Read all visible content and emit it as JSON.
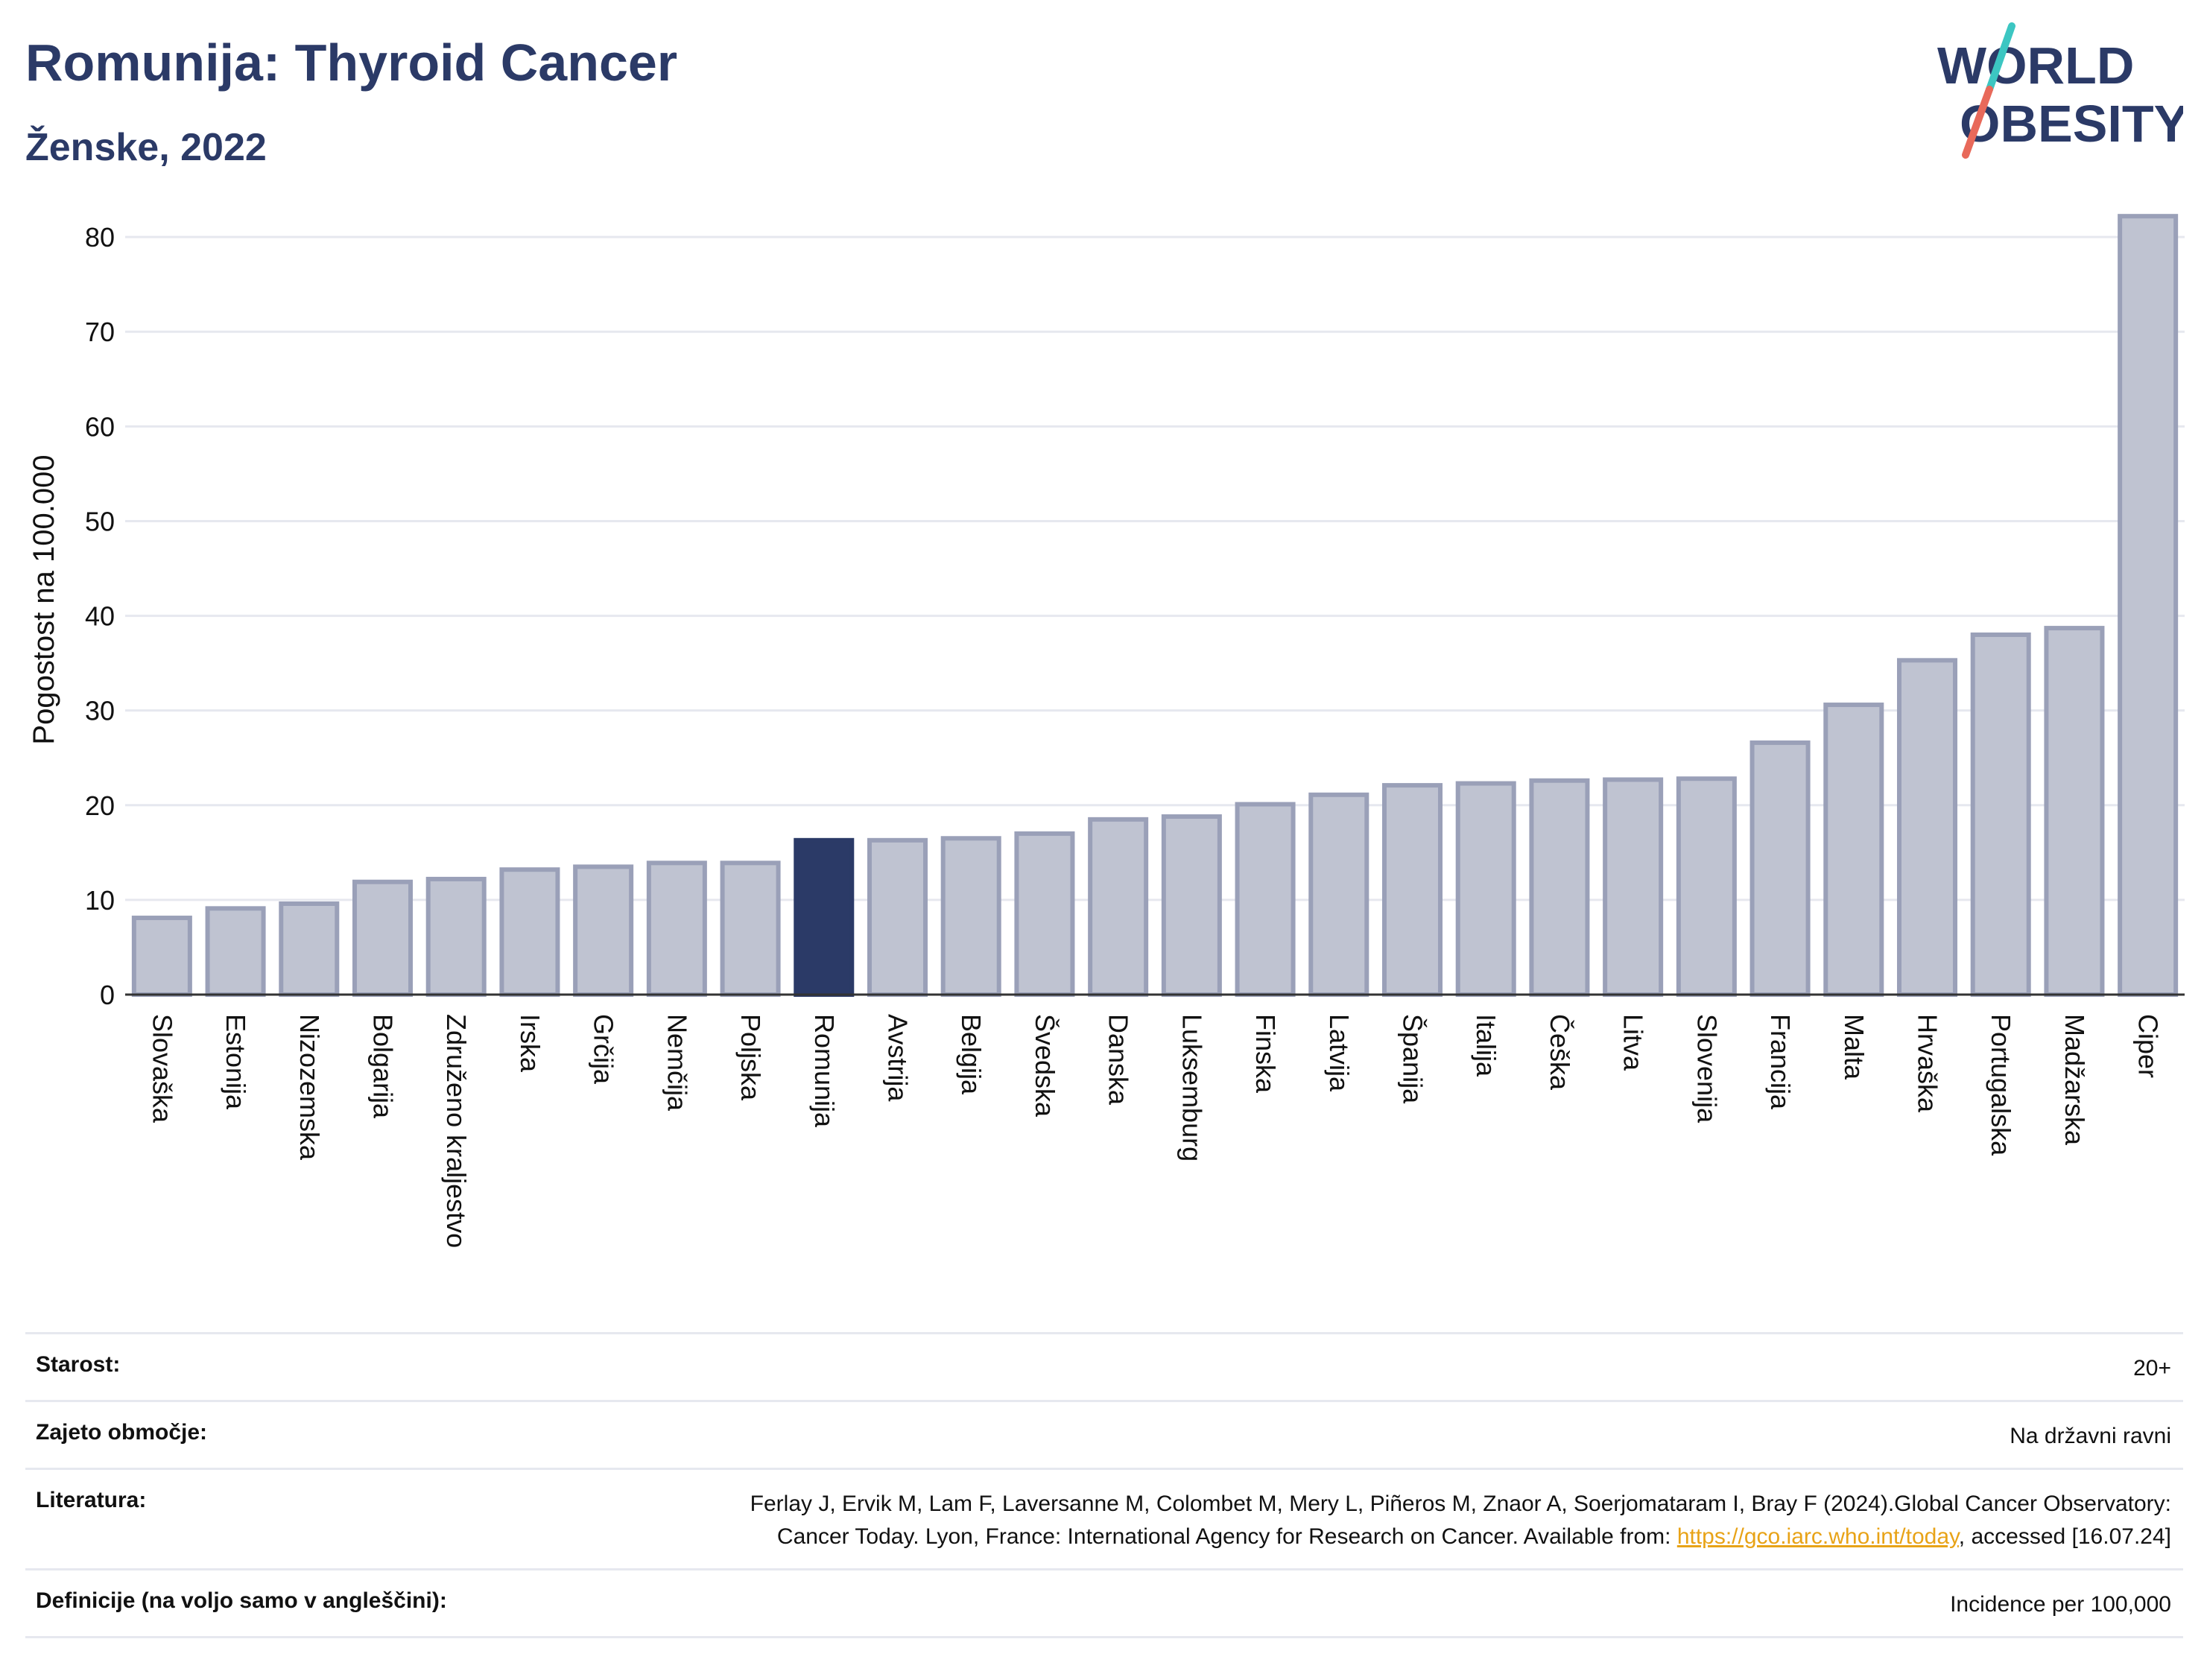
{
  "header": {
    "title": "Romunija: Thyroid Cancer",
    "subtitle": "Ženske, 2022"
  },
  "logo": {
    "line1": "WORLD",
    "line2": "OBESITY",
    "colors": {
      "text": "#2b3a67",
      "slash_top": "#3cc6c2",
      "slash_bottom": "#e8695a"
    }
  },
  "chart_data": {
    "type": "bar",
    "ylabel": "Pogostost na 100.000",
    "ylim": [
      0,
      83
    ],
    "yticks": [
      0,
      10,
      20,
      30,
      40,
      50,
      60,
      70,
      80
    ],
    "grid": true,
    "highlight": "Romunija",
    "colors": {
      "bar": "#bfc3d1",
      "bar_edge": "#9aa0b8",
      "highlight": "#2b3a67",
      "grid": "#e6e8ef"
    },
    "categories": [
      "Slovaška",
      "Estonija",
      "Nizozemska",
      "Bolgarija",
      "Združeno kraljestvo",
      "Irska",
      "Grčija",
      "Nemčija",
      "Poljska",
      "Romunija",
      "Avstrija",
      "Belgija",
      "Švedska",
      "Danska",
      "Luksemburg",
      "Finska",
      "Latvija",
      "Španija",
      "Italija",
      "Češka",
      "Litva",
      "Slovenija",
      "Francija",
      "Malta",
      "Hrvaška",
      "Portugalska",
      "Madžarska",
      "Ciper"
    ],
    "values": [
      8.1,
      9.1,
      9.6,
      11.9,
      12.2,
      13.2,
      13.5,
      13.9,
      13.9,
      16.3,
      16.3,
      16.5,
      17.0,
      18.5,
      18.8,
      20.1,
      21.1,
      22.1,
      22.3,
      22.6,
      22.7,
      22.8,
      26.6,
      30.6,
      35.3,
      38.0,
      38.7,
      82.2
    ]
  },
  "meta": {
    "rows": [
      {
        "label": "Starost:",
        "value": "20+"
      },
      {
        "label": "Zajeto območje:",
        "value": "Na državni ravni"
      },
      {
        "label": "Literatura:",
        "value_before": "Ferlay J, Ervik M, Lam F, Laversanne M, Colombet M, Mery L, Piñeros M, Znaor A, Soerjomataram I, Bray F (2024).Global Cancer Observatory: Cancer Today. Lyon, France: International Agency for Research on Cancer. Available from: ",
        "link": "https://gco.iarc.who.int/today",
        "value_after": ", accessed [16.07.24]"
      },
      {
        "label": "Definicije (na voljo samo v angleščini):",
        "value": "Incidence per 100,000"
      }
    ]
  }
}
